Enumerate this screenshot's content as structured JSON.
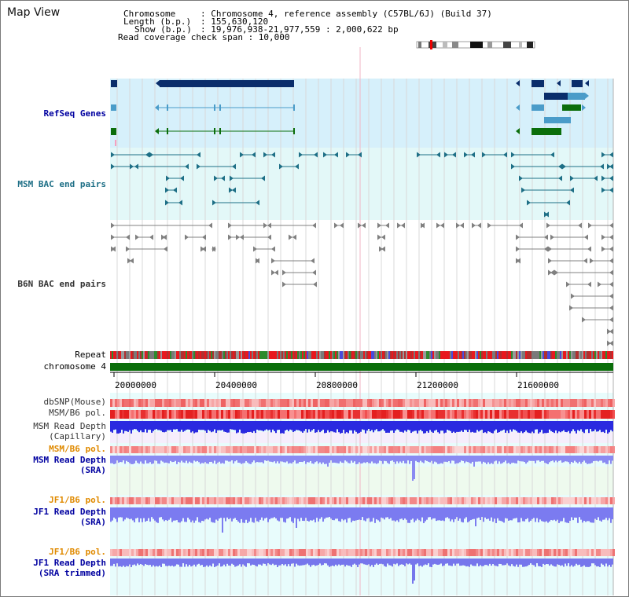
{
  "window": {
    "title": "Map View"
  },
  "info": {
    "chromosome_key": "Chromosome",
    "chromosome_val": ": Chromosome 4, reference assembly (C57BL/6J) (Build 37)",
    "length_key": "Length (b.p.)",
    "length_val": ": 155,630,120",
    "show_key": "Show (b.p.)",
    "show_val": ": 19,976,938-21,977,559 : 2,000,622 bp",
    "coverage_line": "Read coverage check span : 10,000"
  },
  "tracks": {
    "refseq": "RefSeq Genes",
    "msm_bac": "MSM BAC end pairs",
    "b6n_bac": "B6N BAC end pairs",
    "repeat": "Repeat",
    "chromosome": "chromosome 4",
    "dbsnp": "dbSNP(Mouse)",
    "msm_b6_pol_1": "MSM/B6 pol.",
    "msm_depth_cap_1": "MSM Read Depth",
    "msm_depth_cap_2": "(Capillary)",
    "msm_b6_pol_2": "MSM/B6 pol.",
    "msm_depth_sra_1": "MSM Read Depth",
    "msm_depth_sra_2": "(SRA)",
    "jf1_b6_pol_1": "JF1/B6 pol.",
    "jf1_depth_sra_1": "JF1 Read Depth",
    "jf1_depth_sra_2": "(SRA)",
    "jf1_b6_pol_2": "JF1/B6 pol.",
    "jf1_depth_trim_1": "JF1 Read Depth",
    "jf1_depth_trim_2": "(SRA trimmed)"
  },
  "axis": {
    "ticks": [
      "20000000",
      "20400000",
      "20800000",
      "21200000",
      "21600000"
    ]
  },
  "colors": {
    "refseq_bg": "#d6f0fb",
    "msm_bg": "#e3f8f8",
    "cyan_bg": "#e8fcfc",
    "gene_dark": "#0a2d6b",
    "gene_light": "#4a9cc9",
    "gene_green": "#0b6e0b",
    "msm_feature": "#1e6f86",
    "b6n_feature": "#808080",
    "chrom_bar": "#0a6e0a",
    "depth_blue": "#2a2ae0",
    "depth_light": "#7b7bf0",
    "label_orange": "#e08a00",
    "label_blue": "#0000a0",
    "label_teal": "#1e6f86",
    "label_gray": "#333333"
  }
}
